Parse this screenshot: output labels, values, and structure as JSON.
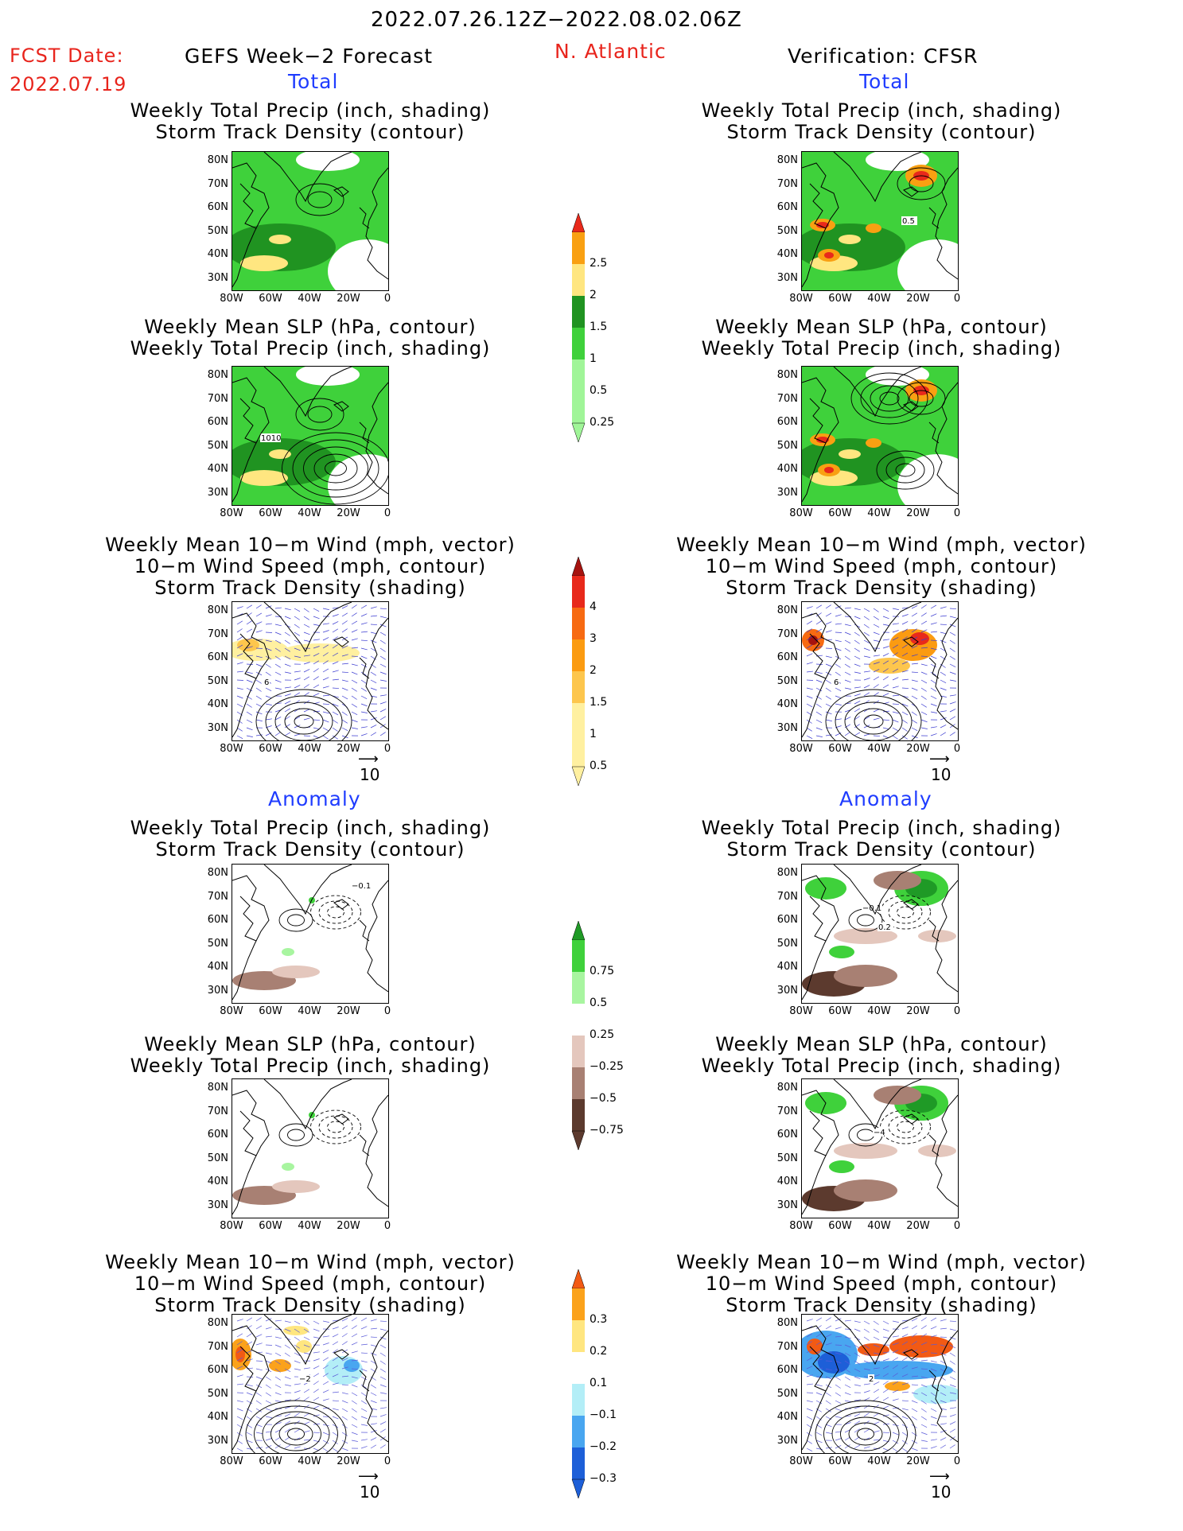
{
  "header": {
    "period": "2022.07.26.12Z−2022.08.02.06Z",
    "fcst_label": "FCST Date:",
    "fcst_date": "2022.07.19",
    "forecast_name": "GEFS Week−2 Forecast",
    "region": "N. Atlantic",
    "verification": "Verification: CFSR"
  },
  "sections": {
    "total": "Total",
    "anomaly": "Anomaly"
  },
  "titles": {
    "precip_track": [
      "Weekly Total Precip (inch, shading)",
      "Storm Track Density (contour)"
    ],
    "slp_precip": [
      "Weekly Mean SLP (hPa, contour)",
      "Weekly Total Precip (inch, shading)"
    ],
    "wind_track": [
      "Weekly Mean 10−m Wind (mph, vector)",
      "10−m Wind Speed (mph, contour)",
      "Storm Track Density (shading)"
    ]
  },
  "axes": {
    "lat": [
      "80N",
      "70N",
      "60N",
      "50N",
      "40N",
      "30N"
    ],
    "lon": [
      "80W",
      "60W",
      "40W",
      "20W",
      "0"
    ]
  },
  "vector_ref": "10",
  "contour_labels": {
    "fc_track_total": "",
    "ob_track_total": "0.5",
    "fc_slp_total": "1010",
    "fc_wind_total": "6",
    "ob_wind_total": "6",
    "fc_track_anom": "−0.1",
    "ob_track_anom": "−0.1",
    "ob_track_anom2": "0.2",
    "ob_slp_anom": "−4",
    "fc_wind_anom": "−2",
    "ob_wind_anom": "2"
  },
  "colorbars": {
    "precip_total": {
      "labels": [
        "2.5",
        "2",
        "1.5",
        "1",
        "0.5",
        "0.25"
      ],
      "colors": [
        "#e8291b",
        "#f9a012",
        "#ffe680",
        "#209321",
        "#3fd13b",
        "#a0f598"
      ]
    },
    "track_total": {
      "labels": [
        "4",
        "3",
        "2",
        "1.5",
        "1",
        "0.5"
      ],
      "colors": [
        "#a6130f",
        "#e8291b",
        "#f76a12",
        "#fb9b11",
        "#fdc64d",
        "#fff0a0"
      ]
    },
    "precip_anom": {
      "labels": [
        "0.75",
        "0.5",
        "0.25",
        "−0.25",
        "−0.5",
        "−0.75"
      ],
      "colors": [
        "#1f9a26",
        "#3fd13b",
        "#a8f5a0",
        "#ffffff",
        "#e4c7bd",
        "#a88073",
        "#5c3a2e"
      ]
    },
    "track_anom": {
      "labels": [
        "0.3",
        "0.2",
        "0.1",
        "−0.1",
        "−0.2",
        "−0.3"
      ],
      "colors": [
        "#f25a14",
        "#fba21b",
        "#ffe680",
        "#ffffff",
        "#b3eef7",
        "#49a6f0",
        "#1d5fd8"
      ]
    }
  }
}
